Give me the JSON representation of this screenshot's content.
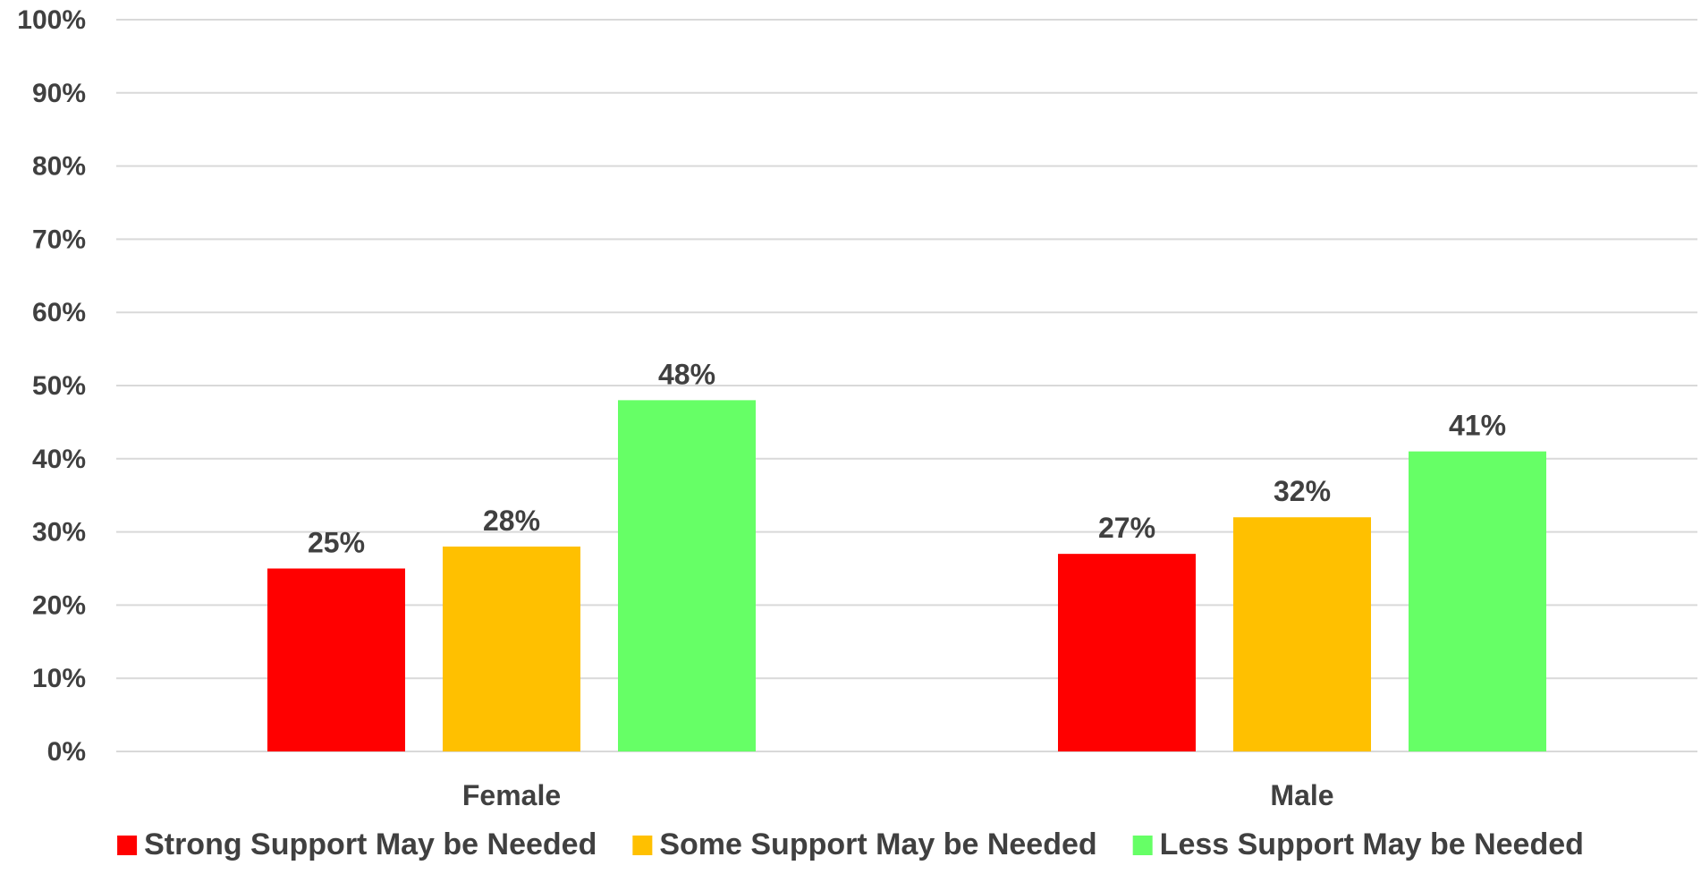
{
  "chart_data": {
    "type": "bar",
    "title": "",
    "xlabel": "",
    "ylabel": "",
    "categories": [
      "Female",
      "Male"
    ],
    "series": [
      {
        "name": "Strong Support May be Needed",
        "color": "#ff0000",
        "values": [
          25,
          27
        ],
        "labels": [
          "25%",
          "27%"
        ]
      },
      {
        "name": "Some Support May be Needed",
        "color": "#ffc000",
        "values": [
          28,
          32
        ],
        "labels": [
          "28%",
          "32%"
        ]
      },
      {
        "name": "Less Support May be Needed",
        "color": "#66ff66",
        "values": [
          48,
          41
        ],
        "labels": [
          "48%",
          "41%"
        ]
      }
    ],
    "ylim": [
      0,
      100
    ],
    "yticks": [
      "0%",
      "10%",
      "20%",
      "30%",
      "40%",
      "50%",
      "60%",
      "70%",
      "80%",
      "90%",
      "100%"
    ],
    "grid": true,
    "legend_position": "bottom"
  }
}
